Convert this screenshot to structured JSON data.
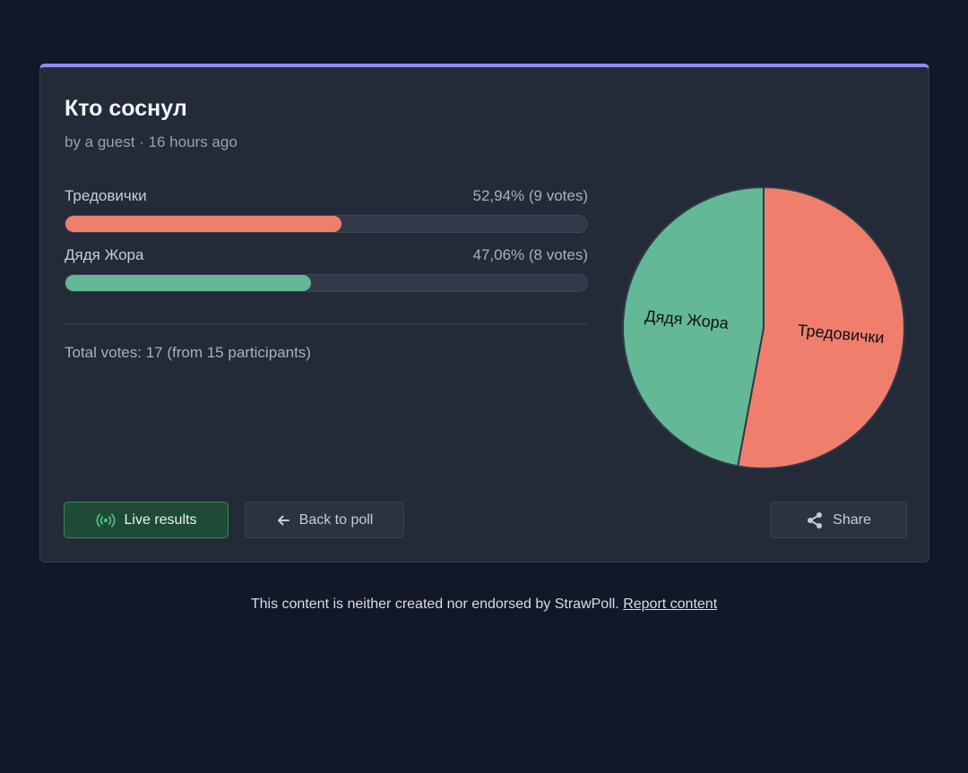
{
  "poll": {
    "title": "Кто соснул",
    "meta": "by a guest · 16 hours ago",
    "options": [
      {
        "label": "Тредовички",
        "stat": "52,94% (9 votes)",
        "percent": 52.94,
        "color": "#ef7f6c"
      },
      {
        "label": "Дядя Жора",
        "stat": "47,06% (8 votes)",
        "percent": 47.06,
        "color": "#63b896"
      }
    ],
    "total": "Total votes: 17 (from 15 participants)"
  },
  "chart_data": {
    "type": "pie",
    "categories": [
      "Тредовички",
      "Дядя Жора"
    ],
    "values": [
      9,
      8
    ],
    "colors": [
      "#ef7f6c",
      "#63b896"
    ]
  },
  "buttons": {
    "live_label": "Live results",
    "back_label": "Back to poll",
    "share_label": "Share"
  },
  "icons": {
    "live": "broadcast-icon",
    "back": "arrow-left-icon",
    "share": "share-icon"
  },
  "footer": {
    "text": "This content is neither created nor endorsed by StrawPoll. ",
    "link": "Report content"
  }
}
